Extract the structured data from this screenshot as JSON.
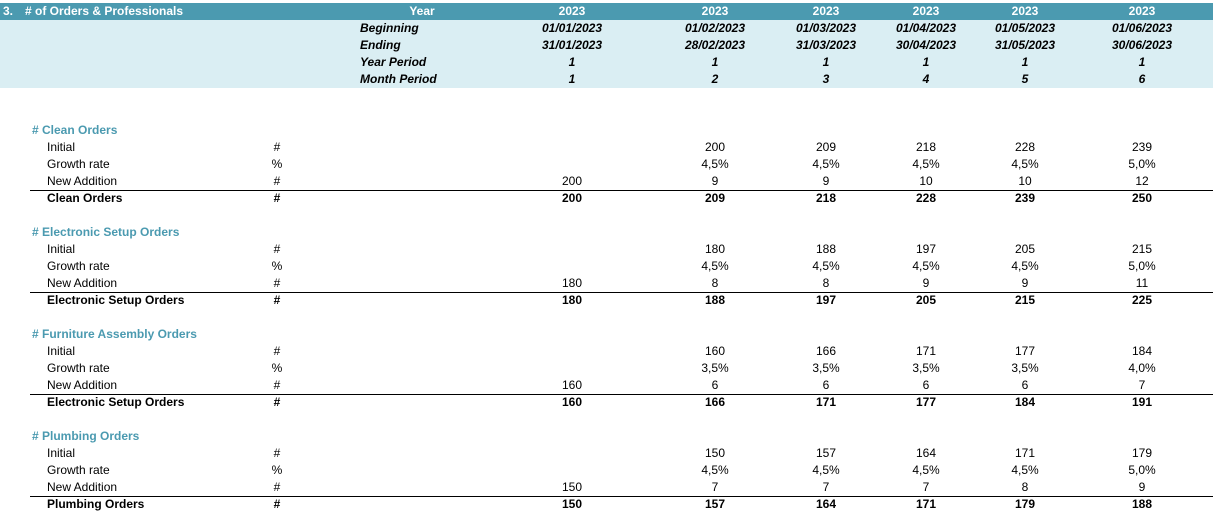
{
  "header": {
    "section_number": "3.",
    "title": "# of Orders & Professionals",
    "year_label": "Year",
    "years": [
      "2023",
      "2023",
      "2023",
      "2023",
      "2023",
      "2023"
    ]
  },
  "periods": {
    "beginning_label": "Beginning",
    "ending_label": "Ending",
    "year_period_label": "Year Period",
    "month_period_label": "Month Period",
    "beginning": [
      "01/01/2023",
      "01/02/2023",
      "01/03/2023",
      "01/04/2023",
      "01/05/2023",
      "01/06/2023"
    ],
    "ending": [
      "31/01/2023",
      "28/02/2023",
      "31/03/2023",
      "30/04/2023",
      "31/05/2023",
      "30/06/2023"
    ],
    "year_period": [
      "1",
      "1",
      "1",
      "1",
      "1",
      "1"
    ],
    "month_period": [
      "1",
      "2",
      "3",
      "4",
      "5",
      "6"
    ]
  },
  "sections": [
    {
      "title": "# Clean Orders",
      "rows": [
        {
          "label": "Initial",
          "unit": "#",
          "values": [
            "",
            "200",
            "209",
            "218",
            "228",
            "239"
          ]
        },
        {
          "label": "Growth rate",
          "unit": "%",
          "values": [
            "",
            "4,5%",
            "4,5%",
            "4,5%",
            "4,5%",
            "5,0%"
          ]
        },
        {
          "label": "New Addition",
          "unit": "#",
          "values": [
            "200",
            "9",
            "9",
            "10",
            "10",
            "12"
          ]
        }
      ],
      "total": {
        "label": "Clean Orders",
        "unit": "#",
        "values": [
          "200",
          "209",
          "218",
          "228",
          "239",
          "250"
        ]
      }
    },
    {
      "title": "# Electronic Setup Orders",
      "rows": [
        {
          "label": "Initial",
          "unit": "#",
          "values": [
            "",
            "180",
            "188",
            "197",
            "205",
            "215"
          ]
        },
        {
          "label": "Growth rate",
          "unit": "%",
          "values": [
            "",
            "4,5%",
            "4,5%",
            "4,5%",
            "4,5%",
            "5,0%"
          ]
        },
        {
          "label": "New Addition",
          "unit": "#",
          "values": [
            "180",
            "8",
            "8",
            "9",
            "9",
            "11"
          ]
        }
      ],
      "total": {
        "label": "Electronic Setup Orders",
        "unit": "#",
        "values": [
          "180",
          "188",
          "197",
          "205",
          "215",
          "225"
        ]
      }
    },
    {
      "title": "# Furniture Assembly Orders",
      "rows": [
        {
          "label": "Initial",
          "unit": "#",
          "values": [
            "",
            "160",
            "166",
            "171",
            "177",
            "184"
          ]
        },
        {
          "label": "Growth rate",
          "unit": "%",
          "values": [
            "",
            "3,5%",
            "3,5%",
            "3,5%",
            "3,5%",
            "4,0%"
          ]
        },
        {
          "label": "New Addition",
          "unit": "#",
          "values": [
            "160",
            "6",
            "6",
            "6",
            "6",
            "7"
          ]
        }
      ],
      "total": {
        "label": "Electronic Setup Orders",
        "unit": "#",
        "values": [
          "160",
          "166",
          "171",
          "177",
          "184",
          "191"
        ]
      }
    },
    {
      "title": "# Plumbing Orders",
      "rows": [
        {
          "label": "Initial",
          "unit": "#",
          "values": [
            "",
            "150",
            "157",
            "164",
            "171",
            "179"
          ]
        },
        {
          "label": "Growth rate",
          "unit": "%",
          "values": [
            "",
            "4,5%",
            "4,5%",
            "4,5%",
            "4,5%",
            "5,0%"
          ]
        },
        {
          "label": "New Addition",
          "unit": "#",
          "values": [
            "150",
            "7",
            "7",
            "7",
            "8",
            "9"
          ]
        }
      ],
      "total": {
        "label": "Plumbing Orders",
        "unit": "#",
        "values": [
          "150",
          "157",
          "164",
          "171",
          "179",
          "188"
        ]
      }
    }
  ]
}
